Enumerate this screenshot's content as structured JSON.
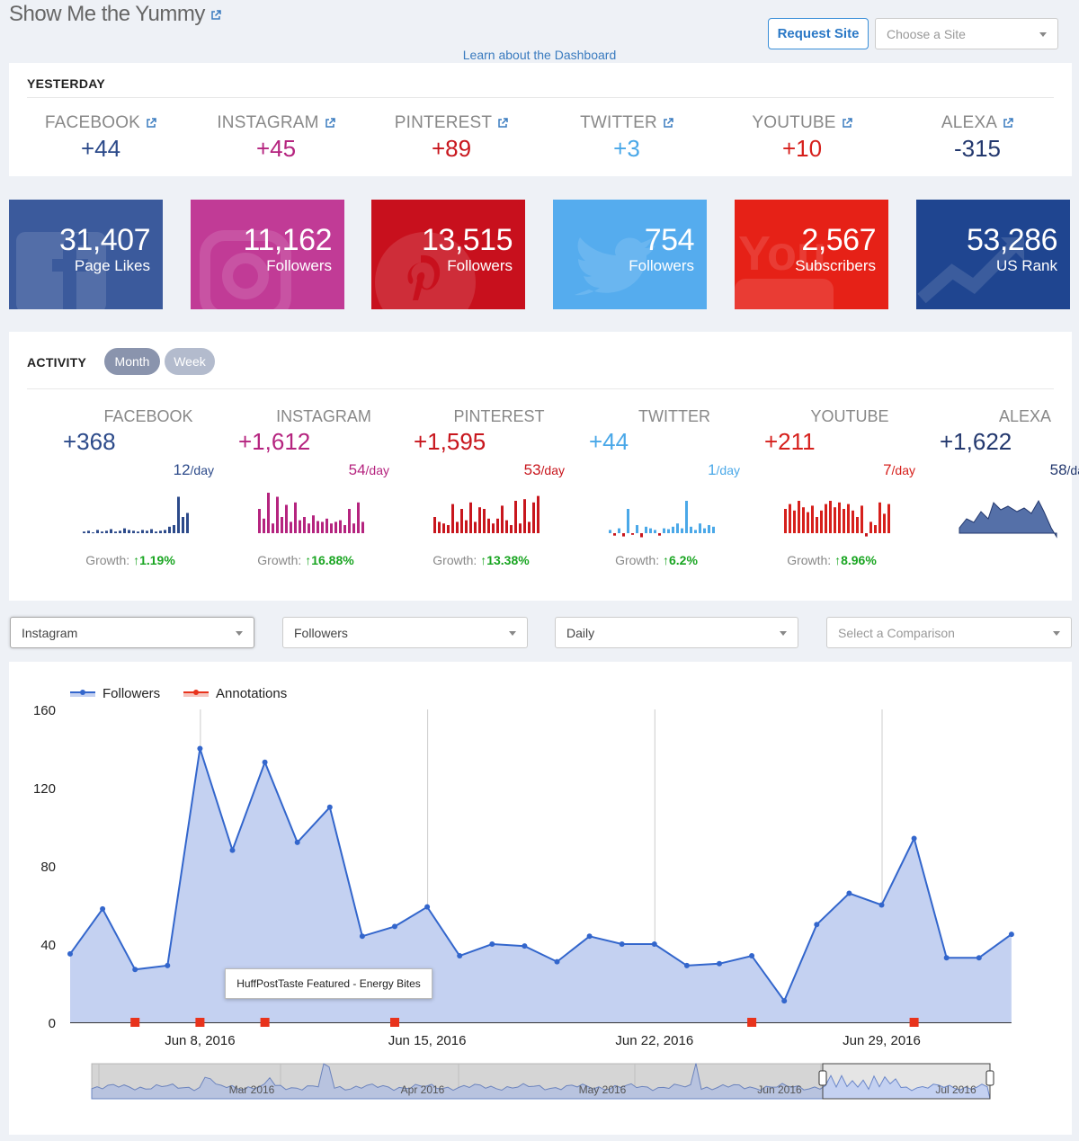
{
  "header": {
    "site_title": "Show Me the Yummy",
    "request_button": "Request Site",
    "site_select_placeholder": "Choose a Site",
    "learn_link": "Learn about the Dashboard"
  },
  "yesterday": {
    "title": "YESTERDAY",
    "stats": [
      {
        "label": "FACEBOOK",
        "value": "+44",
        "color": "#2c4a8a"
      },
      {
        "label": "INSTAGRAM",
        "value": "+45",
        "color": "#b5247f"
      },
      {
        "label": "PINTEREST",
        "value": "+89",
        "color": "#c8161d"
      },
      {
        "label": "TWITTER",
        "value": "+3",
        "color": "#4aa8e8"
      },
      {
        "label": "YOUTUBE",
        "value": "+10",
        "color": "#d6201c"
      },
      {
        "label": "ALEXA",
        "value": "-315",
        "color": "#23386e"
      }
    ]
  },
  "tiles": [
    {
      "value": "31,407",
      "label": "Page Likes",
      "color": "#3b5a9c",
      "icon": "facebook-icon"
    },
    {
      "value": "11,162",
      "label": "Followers",
      "color": "#c13b96",
      "icon": "instagram-icon"
    },
    {
      "value": "13,515",
      "label": "Followers",
      "color": "#c8101d",
      "icon": "pinterest-icon"
    },
    {
      "value": "754",
      "label": "Followers",
      "color": "#55acee",
      "icon": "twitter-icon"
    },
    {
      "value": "2,567",
      "label": "Subscribers",
      "color": "#e62117",
      "icon": "youtube-icon"
    },
    {
      "value": "53,286",
      "label": "US Rank",
      "color": "#1f4590",
      "icon": "trend-icon"
    }
  ],
  "activity": {
    "title": "ACTIVITY",
    "tab_month": "Month",
    "tab_week": "Week",
    "growth_label": "Growth:",
    "per_day_unit": "/day",
    "items": [
      {
        "label": "FACEBOOK",
        "total": "+368",
        "per_day": "12",
        "growth": "1.19%",
        "color": "#2c4a8a"
      },
      {
        "label": "INSTAGRAM",
        "total": "+1,612",
        "per_day": "54",
        "growth": "16.88%",
        "color": "#b5247f"
      },
      {
        "label": "PINTEREST",
        "total": "+1,595",
        "per_day": "53",
        "growth": "13.38%",
        "color": "#c8161d"
      },
      {
        "label": "TWITTER",
        "total": "+44",
        "per_day": "1",
        "growth": "6.2%",
        "color": "#4aa8e8"
      },
      {
        "label": "YOUTUBE",
        "total": "+211",
        "per_day": "7",
        "growth": "8.96%",
        "color": "#d6201c"
      },
      {
        "label": "ALEXA",
        "total": "+1,622",
        "per_day": "58",
        "growth": "",
        "color": "#23386e"
      }
    ]
  },
  "filters": {
    "network": "Instagram",
    "metric": "Followers",
    "interval": "Daily",
    "comparison_placeholder": "Select a Comparison"
  },
  "tooltip": "HuffPostTaste Featured - Energy Bites",
  "colors": {
    "series": "#3366cc",
    "area": "#c4d1f1",
    "annotation": "#e8331c"
  },
  "chart_data": {
    "type": "area",
    "legend": [
      {
        "name": "Followers"
      },
      {
        "name": "Annotations"
      }
    ],
    "legend_position": "top-left",
    "ylim": [
      0,
      160
    ],
    "yticks": [
      "0",
      "40",
      "80",
      "120",
      "160"
    ],
    "xtick_labels": [
      {
        "label": "Jun 8, 2016",
        "x": 4
      },
      {
        "label": "Jun 15, 2016",
        "x": 11
      },
      {
        "label": "Jun 22, 2016",
        "x": 18
      },
      {
        "label": "Jun 29, 2016",
        "x": 25
      }
    ],
    "series": [
      {
        "name": "Followers",
        "values": [
          35,
          58,
          27,
          29,
          140,
          88,
          133,
          92,
          110,
          44,
          49,
          59,
          34,
          40,
          39,
          31,
          44,
          40,
          40,
          29,
          30,
          34,
          11,
          50,
          66,
          60,
          94,
          33,
          33,
          45
        ]
      }
    ],
    "annotations_x": [
      2,
      4,
      6,
      10,
      21,
      26
    ],
    "navigator_labels": [
      "Mar 2016",
      "Apr 2016",
      "May 2016",
      "Jun 2016",
      "Jul 2016"
    ]
  }
}
